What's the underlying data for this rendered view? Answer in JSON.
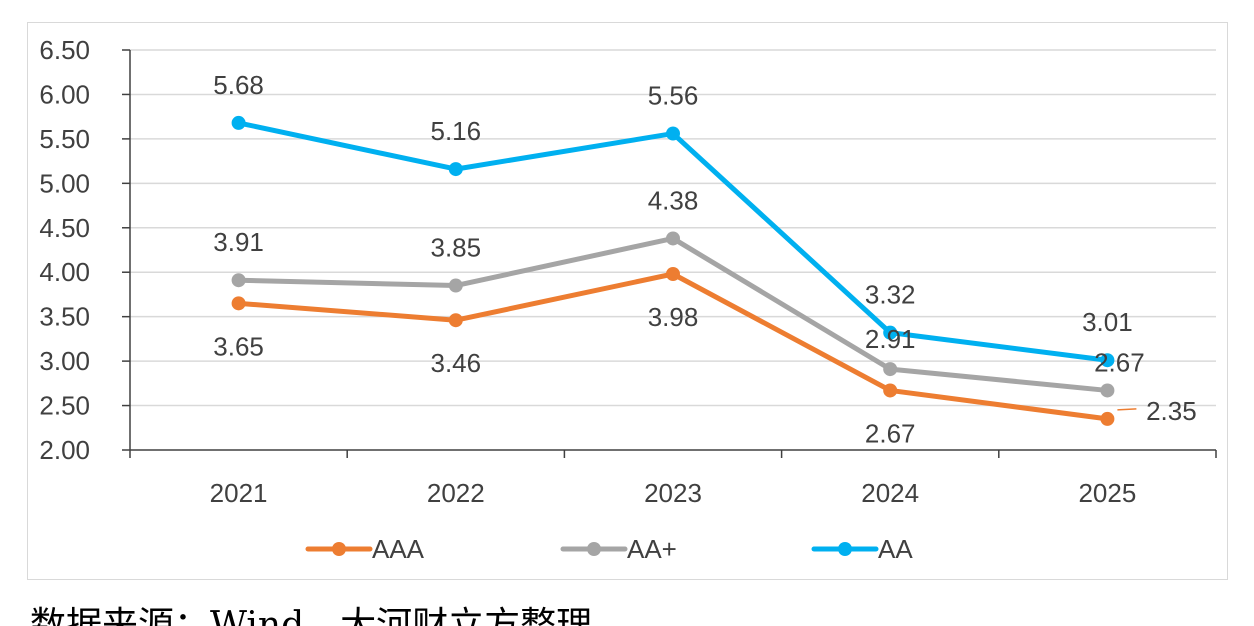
{
  "chart_data": {
    "type": "line",
    "categories": [
      "2021",
      "2022",
      "2023",
      "2024",
      "2025"
    ],
    "series": [
      {
        "name": "AAA",
        "color": "#ED7D31",
        "values": [
          3.65,
          3.46,
          3.98,
          2.67,
          2.35
        ]
      },
      {
        "name": "AA+",
        "color": "#A5A5A5",
        "values": [
          3.91,
          3.85,
          4.38,
          2.91,
          2.67
        ]
      },
      {
        "name": "AA",
        "color": "#00B0F0",
        "values": [
          5.68,
          5.16,
          5.56,
          3.32,
          3.01
        ]
      }
    ],
    "yticks": [
      "2.00",
      "2.50",
      "3.00",
      "3.50",
      "4.00",
      "4.50",
      "5.00",
      "5.50",
      "6.00",
      "6.50"
    ],
    "ylim": [
      2.0,
      6.5
    ],
    "xlabel": "",
    "ylabel": "",
    "grid": true,
    "legend": "bottom",
    "data_labels": true
  },
  "source": "数据来源：Wind，大河财立方整理"
}
